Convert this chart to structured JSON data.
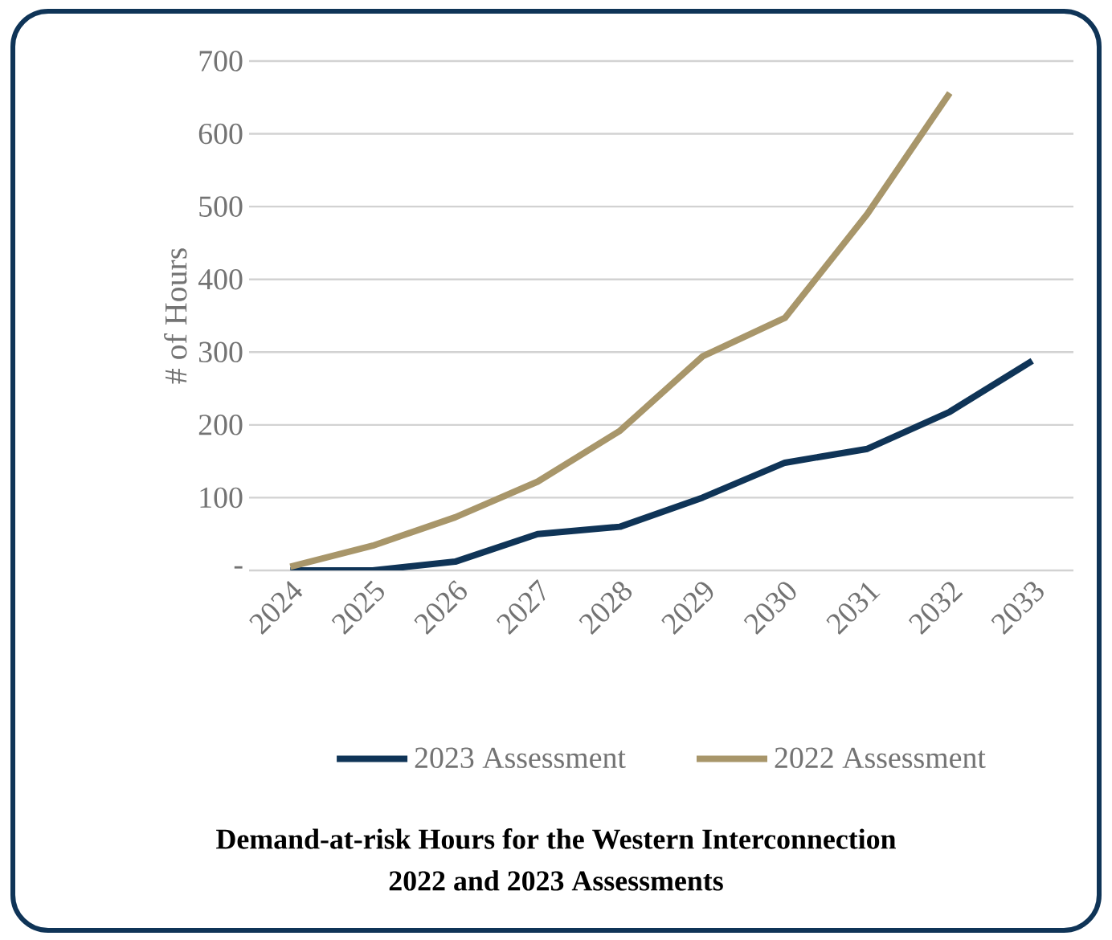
{
  "chart_data": {
    "type": "line",
    "title": "Demand-at-risk Hours for the Western Interconnection",
    "subtitle": "2022 and 2023 Assessments",
    "ylabel": "# of Hours",
    "categories": [
      "2024",
      "2025",
      "2026",
      "2027",
      "2028",
      "2029",
      "2030",
      "2031",
      "2032",
      "2033"
    ],
    "series": [
      {
        "name": "2023 Assessment",
        "color": "#0f3457",
        "values": [
          0,
          0,
          12,
          50,
          60,
          100,
          148,
          167,
          218,
          288
        ]
      },
      {
        "name": "2022 Assessment",
        "color": "#a8966a",
        "values": [
          5,
          34,
          73,
          122,
          192,
          294,
          347,
          490,
          656,
          null
        ]
      }
    ],
    "ylim": [
      0,
      700
    ],
    "yticks": [
      {
        "value": 0,
        "label": "-"
      },
      100,
      200,
      300,
      400,
      500,
      600,
      700
    ],
    "grid": "y",
    "legend": "bottom"
  }
}
